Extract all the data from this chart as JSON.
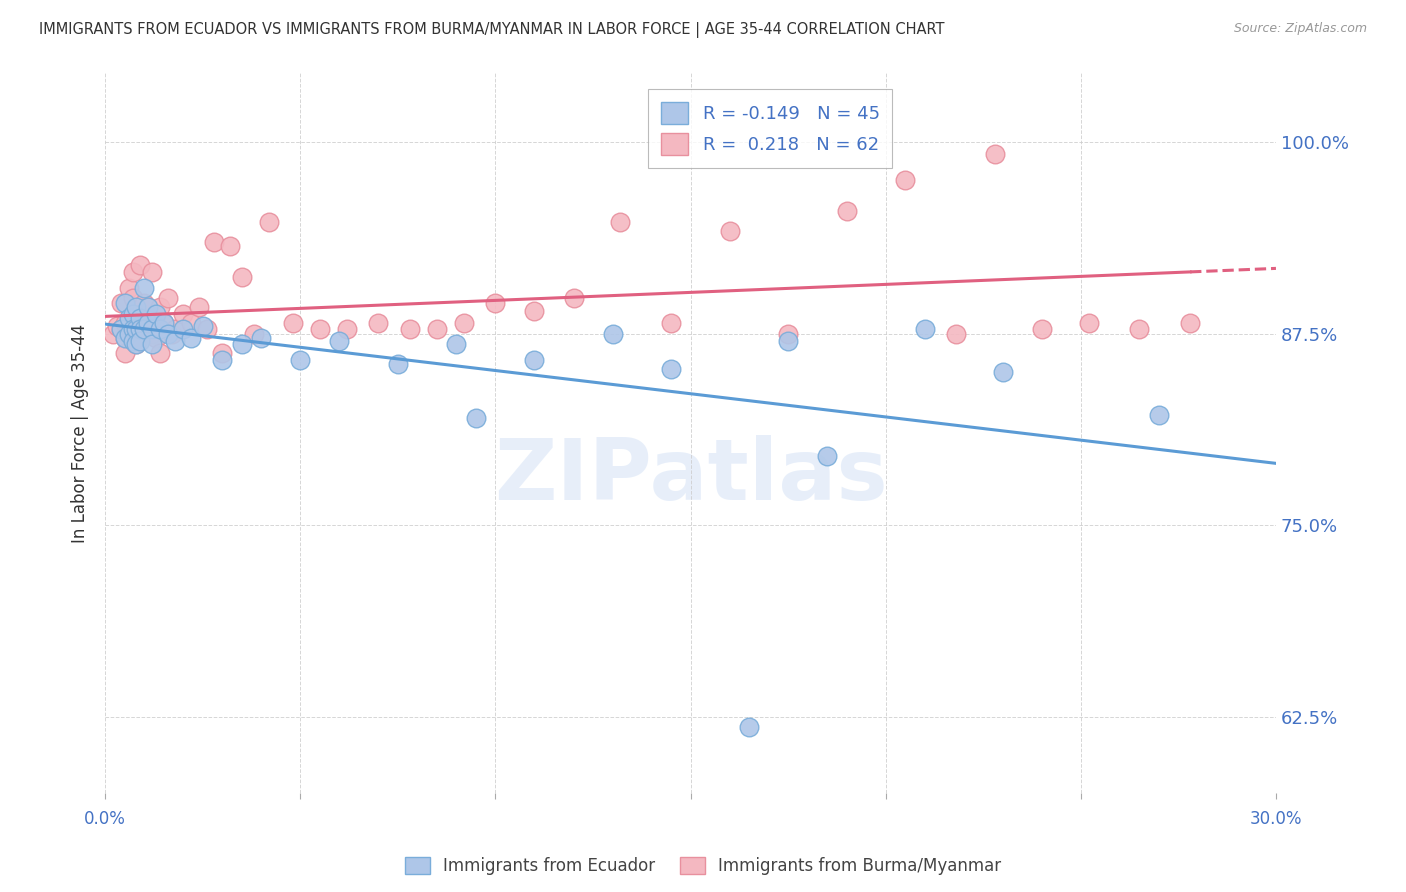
{
  "title": "IMMIGRANTS FROM ECUADOR VS IMMIGRANTS FROM BURMA/MYANMAR IN LABOR FORCE | AGE 35-44 CORRELATION CHART",
  "source": "Source: ZipAtlas.com",
  "ylabel": "In Labor Force | Age 35-44",
  "yticks": [
    0.625,
    0.75,
    0.875,
    1.0
  ],
  "ytick_labels": [
    "62.5%",
    "75.0%",
    "87.5%",
    "100.0%"
  ],
  "xlim": [
    0.0,
    0.3
  ],
  "ylim": [
    0.575,
    1.045
  ],
  "watermark": "ZIPatlas",
  "legend_R1": "-0.149",
  "legend_N1": "45",
  "legend_R2": "0.218",
  "legend_N2": "62",
  "ecuador_color": "#aec6e8",
  "burma_color": "#f4b8c1",
  "ecuador_edge": "#7aadda",
  "burma_edge": "#e8909e",
  "trend_ecuador_color": "#5b9bd5",
  "trend_burma_color": "#e06080",
  "background_color": "#ffffff",
  "axis_label_color": "#4472c4",
  "ecuador_x": [
    0.004,
    0.005,
    0.005,
    0.006,
    0.006,
    0.007,
    0.007,
    0.007,
    0.008,
    0.008,
    0.008,
    0.009,
    0.009,
    0.009,
    0.01,
    0.01,
    0.011,
    0.011,
    0.012,
    0.012,
    0.013,
    0.014,
    0.015,
    0.016,
    0.018,
    0.02,
    0.022,
    0.025,
    0.03,
    0.035,
    0.04,
    0.05,
    0.06,
    0.075,
    0.09,
    0.095,
    0.11,
    0.13,
    0.145,
    0.165,
    0.175,
    0.185,
    0.21,
    0.23,
    0.27
  ],
  "ecuador_y": [
    0.878,
    0.895,
    0.872,
    0.885,
    0.875,
    0.888,
    0.878,
    0.87,
    0.892,
    0.878,
    0.868,
    0.885,
    0.878,
    0.87,
    0.905,
    0.878,
    0.892,
    0.882,
    0.878,
    0.868,
    0.888,
    0.878,
    0.882,
    0.875,
    0.87,
    0.878,
    0.872,
    0.88,
    0.858,
    0.868,
    0.872,
    0.858,
    0.87,
    0.855,
    0.868,
    0.82,
    0.858,
    0.875,
    0.852,
    0.618,
    0.87,
    0.795,
    0.878,
    0.85,
    0.822
  ],
  "burma_x": [
    0.002,
    0.003,
    0.004,
    0.004,
    0.005,
    0.005,
    0.005,
    0.006,
    0.006,
    0.007,
    0.007,
    0.007,
    0.008,
    0.008,
    0.009,
    0.009,
    0.01,
    0.01,
    0.011,
    0.011,
    0.012,
    0.012,
    0.013,
    0.013,
    0.014,
    0.014,
    0.015,
    0.016,
    0.017,
    0.018,
    0.02,
    0.022,
    0.024,
    0.026,
    0.028,
    0.03,
    0.032,
    0.035,
    0.038,
    0.042,
    0.048,
    0.055,
    0.062,
    0.07,
    0.078,
    0.085,
    0.092,
    0.1,
    0.11,
    0.12,
    0.132,
    0.145,
    0.16,
    0.175,
    0.19,
    0.205,
    0.218,
    0.228,
    0.24,
    0.252,
    0.265,
    0.278
  ],
  "burma_y": [
    0.875,
    0.88,
    0.878,
    0.895,
    0.882,
    0.872,
    0.862,
    0.905,
    0.878,
    0.915,
    0.898,
    0.872,
    0.882,
    0.868,
    0.92,
    0.875,
    0.895,
    0.878,
    0.892,
    0.882,
    0.875,
    0.915,
    0.888,
    0.872,
    0.892,
    0.862,
    0.882,
    0.898,
    0.875,
    0.878,
    0.888,
    0.882,
    0.892,
    0.878,
    0.935,
    0.862,
    0.932,
    0.912,
    0.875,
    0.948,
    0.882,
    0.878,
    0.878,
    0.882,
    0.878,
    0.878,
    0.882,
    0.895,
    0.89,
    0.898,
    0.948,
    0.882,
    0.942,
    0.875,
    0.955,
    0.975,
    0.875,
    0.992,
    0.878,
    0.882,
    0.878,
    0.882
  ]
}
